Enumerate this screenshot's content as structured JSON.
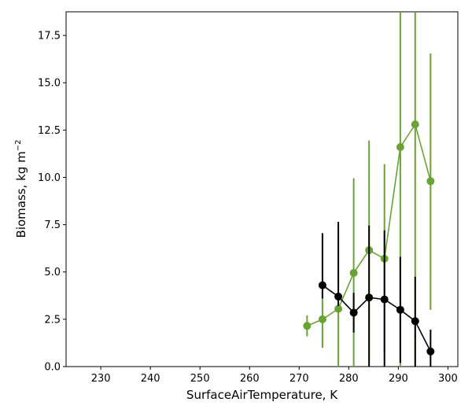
{
  "chart_data": {
    "type": "line",
    "title": "",
    "xlabel": "SurfaceAirTemperature,  K",
    "ylabel": "Biomass,  kg m",
    "ylabel_sup": "−2",
    "xlim": [
      223,
      302
    ],
    "ylim": [
      0,
      18.75
    ],
    "xticks": [
      230,
      240,
      250,
      260,
      270,
      280,
      290,
      300
    ],
    "xtick_labels": [
      "230",
      "240",
      "250",
      "260",
      "270",
      "280",
      "290",
      "300"
    ],
    "yticks": [
      0,
      2.5,
      5,
      7.5,
      10,
      12.5,
      15,
      17.5
    ],
    "ytick_labels": [
      "0.0",
      "2.5",
      "5.0",
      "7.5",
      "10.0",
      "12.5",
      "15.0",
      "17.5"
    ],
    "grid": false,
    "legend": "none",
    "series": [
      {
        "color": "#6aa335",
        "x": [
          271.6,
          274.7,
          277.9,
          281.0,
          284.1,
          287.2,
          290.4,
          293.4,
          296.5
        ],
        "y": [
          2.15,
          2.5,
          3.05,
          4.95,
          6.15,
          5.7,
          11.6,
          12.8,
          9.8
        ],
        "err_low": [
          1.6,
          1.0,
          0.0,
          0.0,
          0.35,
          0.7,
          0.0,
          0.0,
          3.0
        ],
        "err_high": [
          2.7,
          4.0,
          6.9,
          9.95,
          11.95,
          10.7,
          18.75,
          18.75,
          16.55
        ]
      },
      {
        "color": "#000000",
        "x": [
          274.7,
          277.9,
          281.0,
          284.1,
          287.2,
          290.4,
          293.4,
          296.5
        ],
        "y": [
          4.3,
          3.7,
          2.85,
          3.65,
          3.55,
          3.0,
          2.4,
          0.8
        ],
        "err_low": [
          3.6,
          3.2,
          1.8,
          0.0,
          0.0,
          0.2,
          0.0,
          0.0
        ],
        "err_high": [
          7.05,
          7.65,
          3.9,
          7.45,
          7.2,
          5.8,
          4.75,
          1.95
        ]
      }
    ]
  }
}
